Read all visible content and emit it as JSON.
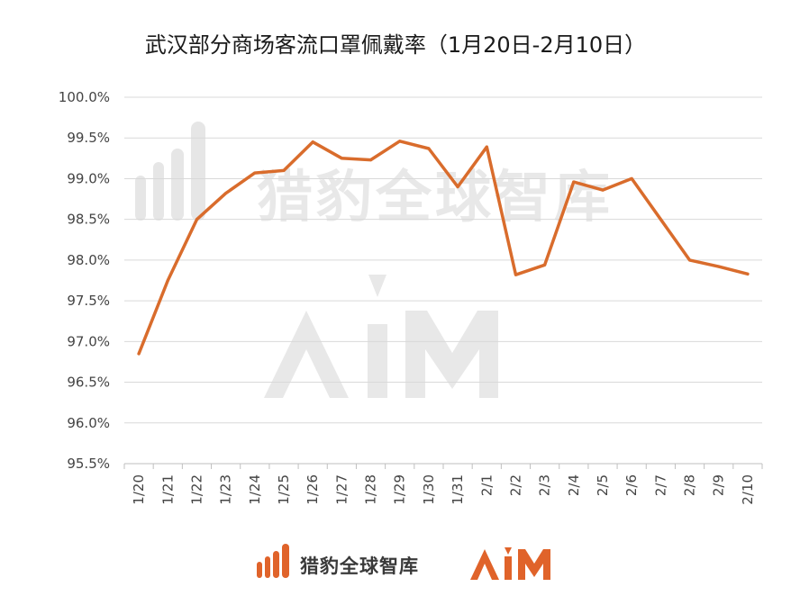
{
  "chart_data": {
    "type": "line",
    "title": "武汉部分商场客流口罩佩戴率（1月20日-2月10日）",
    "categories": [
      "1/20",
      "1/21",
      "1/22",
      "1/23",
      "1/24",
      "1/25",
      "1/26",
      "1/27",
      "1/28",
      "1/29",
      "1/30",
      "1/31",
      "2/1",
      "2/2",
      "2/3",
      "2/4",
      "2/5",
      "2/6",
      "2/7",
      "2/8",
      "2/9",
      "2/10"
    ],
    "series": [
      {
        "values": [
          96.85,
          97.75,
          98.5,
          98.82,
          99.07,
          99.1,
          99.45,
          99.25,
          99.23,
          99.46,
          99.37,
          98.9,
          99.39,
          97.82,
          97.94,
          98.96,
          98.86,
          99.0,
          98.5,
          98.0,
          97.92,
          97.83
        ]
      }
    ],
    "ylim": [
      95.5,
      100.0
    ],
    "yticks": [
      "95.5%",
      "96.0%",
      "96.5%",
      "97.0%",
      "97.5%",
      "98.0%",
      "98.5%",
      "99.0%",
      "99.5%",
      "100.0%"
    ],
    "ytick_values": [
      95.5,
      96.0,
      96.5,
      97.0,
      97.5,
      98.0,
      98.5,
      99.0,
      99.5,
      100.0
    ],
    "grid": true,
    "line_color": "#D96C2C"
  },
  "watermark": {
    "brand_text": "猎豹全球智库",
    "aim_text": "AIM"
  },
  "footer": {
    "brand_text": "猎豹全球智库",
    "aim_text": "AIM",
    "brand_color": "#E0632A"
  }
}
